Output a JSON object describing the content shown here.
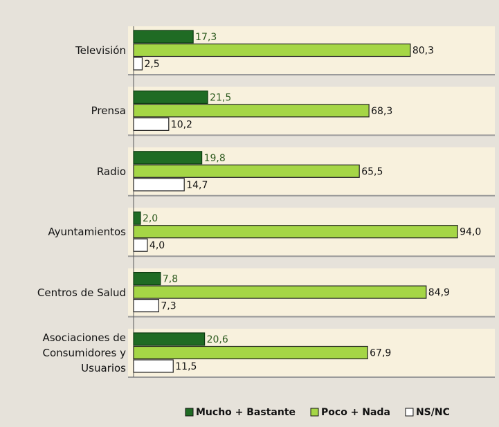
{
  "chart_data": {
    "type": "bar",
    "orientation": "horizontal",
    "categories": [
      "Televisión",
      "Prensa",
      "Radio",
      "Ayuntamientos",
      "Centros de Salud",
      "Asociaciones de Consumidores y Usuarios"
    ],
    "xlim": [
      0,
      100
    ],
    "series": [
      {
        "name": "Mucho + Bastante",
        "color": "#1f6b24",
        "values": [
          17.3,
          21.5,
          19.8,
          2.0,
          7.8,
          20.6
        ],
        "value_labels": [
          "17,3",
          "21,5",
          "19,8",
          "2,0",
          "7,8",
          "20,6"
        ]
      },
      {
        "name": "Poco + Nada",
        "color": "#a5d646",
        "values": [
          80.3,
          68.3,
          65.5,
          94.0,
          84.9,
          67.9
        ],
        "value_labels": [
          "80,3",
          "68,3",
          "65,5",
          "94,0",
          "84,9",
          "67,9"
        ]
      },
      {
        "name": "NS/NC",
        "color": "#ffffff",
        "values": [
          2.5,
          10.2,
          14.7,
          4.0,
          7.3,
          11.5
        ],
        "value_labels": [
          "2,5",
          "10,2",
          "14,7",
          "4,0",
          "7,3",
          "11,5"
        ]
      }
    ],
    "legend": "bottom-right"
  }
}
